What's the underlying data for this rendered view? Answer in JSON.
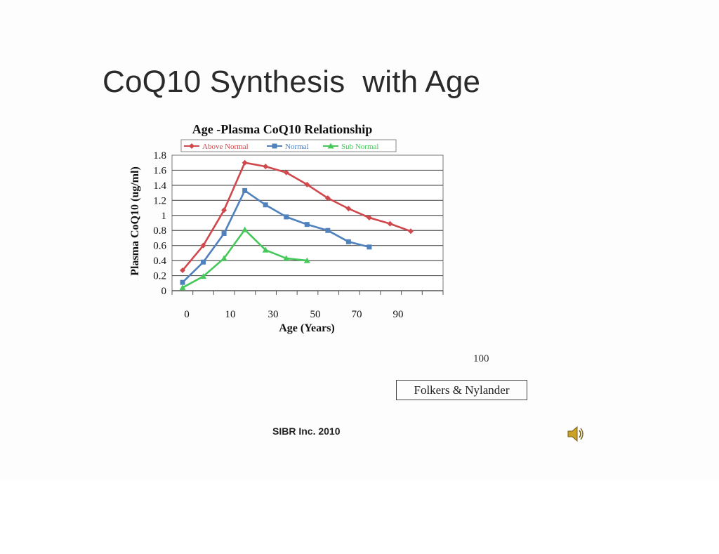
{
  "slide": {
    "title": "CoQ10 Synthesis  with Age",
    "page_number": "100",
    "citation": "Folkers & Nylander",
    "footer": "SIBR Inc. 2010",
    "audio_icon": "speaker-icon"
  },
  "chart_data": {
    "type": "line",
    "title": "Age -Plasma CoQ10 Relationship",
    "xlabel": "Age (Years)",
    "ylabel": "Plasma CoQ10 (ug/ml)",
    "x_tick_labels": [
      "0",
      "10",
      "30",
      "50",
      "70",
      "90"
    ],
    "y_ticks": [
      0,
      0.2,
      0.4,
      0.6,
      0.8,
      1,
      1.2,
      1.4,
      1.6,
      1.8
    ],
    "ylim": [
      0,
      1.8
    ],
    "grid": true,
    "legend_position": "top",
    "series": [
      {
        "name": "Above Normal",
        "color": "#d0484c",
        "marker": "diamond",
        "points": [
          {
            "x": 0,
            "y": 0.27
          },
          {
            "x": 4,
            "y": 0.6
          },
          {
            "x": 8,
            "y": 1.07
          },
          {
            "x": 12,
            "y": 1.7
          },
          {
            "x": 16,
            "y": 1.65
          },
          {
            "x": 20,
            "y": 1.57
          },
          {
            "x": 24,
            "y": 1.41
          },
          {
            "x": 28,
            "y": 1.23
          },
          {
            "x": 32,
            "y": 1.09
          },
          {
            "x": 36,
            "y": 0.97
          },
          {
            "x": 40,
            "y": 0.89
          },
          {
            "x": 44,
            "y": 0.79
          }
        ]
      },
      {
        "name": "Normal",
        "color": "#4f81bd",
        "marker": "square",
        "points": [
          {
            "x": 0,
            "y": 0.11
          },
          {
            "x": 4,
            "y": 0.38
          },
          {
            "x": 8,
            "y": 0.76
          },
          {
            "x": 12,
            "y": 1.33
          },
          {
            "x": 16,
            "y": 1.14
          },
          {
            "x": 20,
            "y": 0.98
          },
          {
            "x": 24,
            "y": 0.88
          },
          {
            "x": 28,
            "y": 0.8
          },
          {
            "x": 32,
            "y": 0.65
          },
          {
            "x": 36,
            "y": 0.58
          }
        ]
      },
      {
        "name": "Sub Normal",
        "color": "#46c85a",
        "marker": "triangle",
        "points": [
          {
            "x": 0,
            "y": 0.04
          },
          {
            "x": 4,
            "y": 0.19
          },
          {
            "x": 8,
            "y": 0.43
          },
          {
            "x": 12,
            "y": 0.81
          },
          {
            "x": 16,
            "y": 0.54
          },
          {
            "x": 20,
            "y": 0.43
          },
          {
            "x": 24,
            "y": 0.4
          }
        ]
      }
    ]
  }
}
